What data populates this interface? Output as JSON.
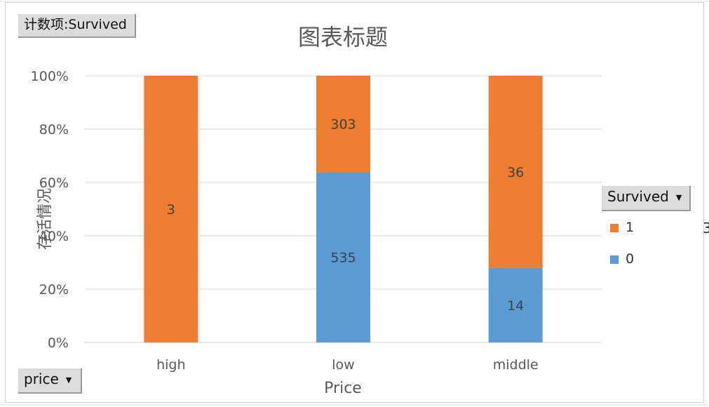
{
  "value_field_label": "计数项:Survived",
  "axis_field_label": "price",
  "legend_field_label": "Survived",
  "dropdown_arrow": "▼",
  "clipped_cell_text": "3",
  "colors": {
    "series_1": "#ed7d31",
    "series_0": "#5b9bd5",
    "gridline": "#d9d9d9",
    "axis_text": "#595959"
  },
  "chart_data": {
    "type": "bar",
    "stacked": "percent",
    "title": "图表标题",
    "xlabel": "Price",
    "ylabel": "存活情况",
    "categories": [
      "high",
      "low",
      "middle"
    ],
    "series": [
      {
        "name": "0",
        "values": [
          0,
          535,
          14
        ]
      },
      {
        "name": "1",
        "values": [
          3,
          303,
          36
        ]
      }
    ],
    "yticks": [
      "0%",
      "20%",
      "40%",
      "60%",
      "80%",
      "100%"
    ],
    "ylim": [
      0,
      1
    ],
    "grid": true,
    "legend": [
      {
        "name": "1"
      },
      {
        "name": "0"
      }
    ],
    "legend_position": "right"
  }
}
